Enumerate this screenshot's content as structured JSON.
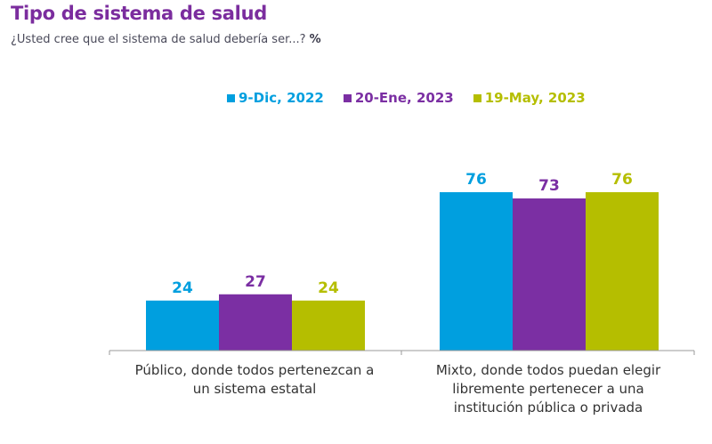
{
  "header": {
    "title": "Tipo de sistema de salud",
    "subtitle": "¿Usted cree que el sistema de salud debería ser...?",
    "unit": "%"
  },
  "chart_data": {
    "type": "bar",
    "title": "Tipo de sistema de salud",
    "subtitle": "¿Usted cree que el sistema de salud debería ser...? %",
    "xlabel": "",
    "ylabel": "",
    "ylim": [
      0,
      80
    ],
    "grid": false,
    "legend_position": "top",
    "categories": [
      "Público, donde todos pertenezcan a un sistema estatal",
      "Mixto, donde todos puedan elegir libremente pertenecer a una institución pública o privada"
    ],
    "category_lines": [
      [
        "Público, donde todos pertenezcan a",
        "un sistema estatal"
      ],
      [
        "Mixto, donde todos puedan elegir",
        "libremente pertenecer a una",
        "institución pública o privada"
      ]
    ],
    "series": [
      {
        "name": "9-Dic, 2022",
        "color": "#009FDF",
        "values": [
          24,
          76
        ]
      },
      {
        "name": "20-Ene, 2023",
        "color": "#7B2FA3",
        "values": [
          27,
          73
        ]
      },
      {
        "name": "19-May, 2023",
        "color": "#B5BE00",
        "values": [
          24,
          76
        ]
      }
    ]
  }
}
